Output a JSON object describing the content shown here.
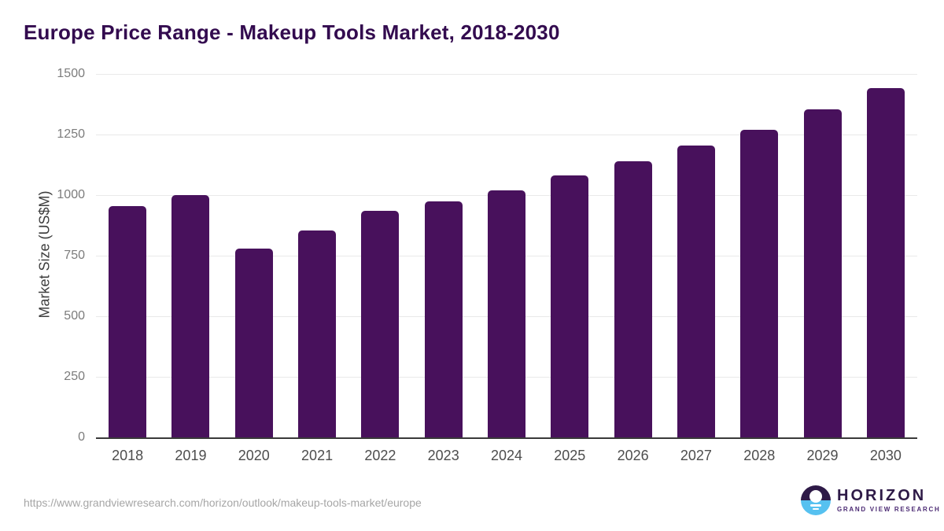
{
  "header": {
    "title": "Europe Price Range - Makeup Tools Market, 2018-2030"
  },
  "chart_data": {
    "type": "bar",
    "title": "Europe Price Range - Makeup Tools Market, 2018-2030",
    "categories": [
      "2018",
      "2019",
      "2020",
      "2021",
      "2022",
      "2023",
      "2024",
      "2025",
      "2026",
      "2027",
      "2028",
      "2029",
      "2030"
    ],
    "values": [
      955,
      1000,
      780,
      855,
      935,
      975,
      1020,
      1080,
      1140,
      1205,
      1270,
      1355,
      1440
    ],
    "xlabel": "",
    "ylabel": "Market Size (US$M)",
    "ylim": [
      0,
      1500
    ],
    "yticks": [
      0,
      250,
      500,
      750,
      1000,
      1250,
      1500
    ],
    "grid": "horizontal-on",
    "legend": "none",
    "bar_color": "#48115c"
  },
  "footer": {
    "source_url": "https://www.grandviewresearch.com/horizon/outlook/makeup-tools-market/europe",
    "logo": {
      "name": "HORIZON",
      "subtitle": "GRAND VIEW RESEARCH"
    }
  },
  "colors": {
    "title_text": "#330b4f",
    "bar": "#48115c",
    "grid_line": "#e9e9e9",
    "axis_line": "#3a3a3a",
    "y_tick_text": "#7c7c7c",
    "x_tick_text": "#4d4d4d",
    "url_text": "#a6a6a6",
    "logo_purple": "#2e1a47",
    "logo_blue": "#56c1f0"
  }
}
